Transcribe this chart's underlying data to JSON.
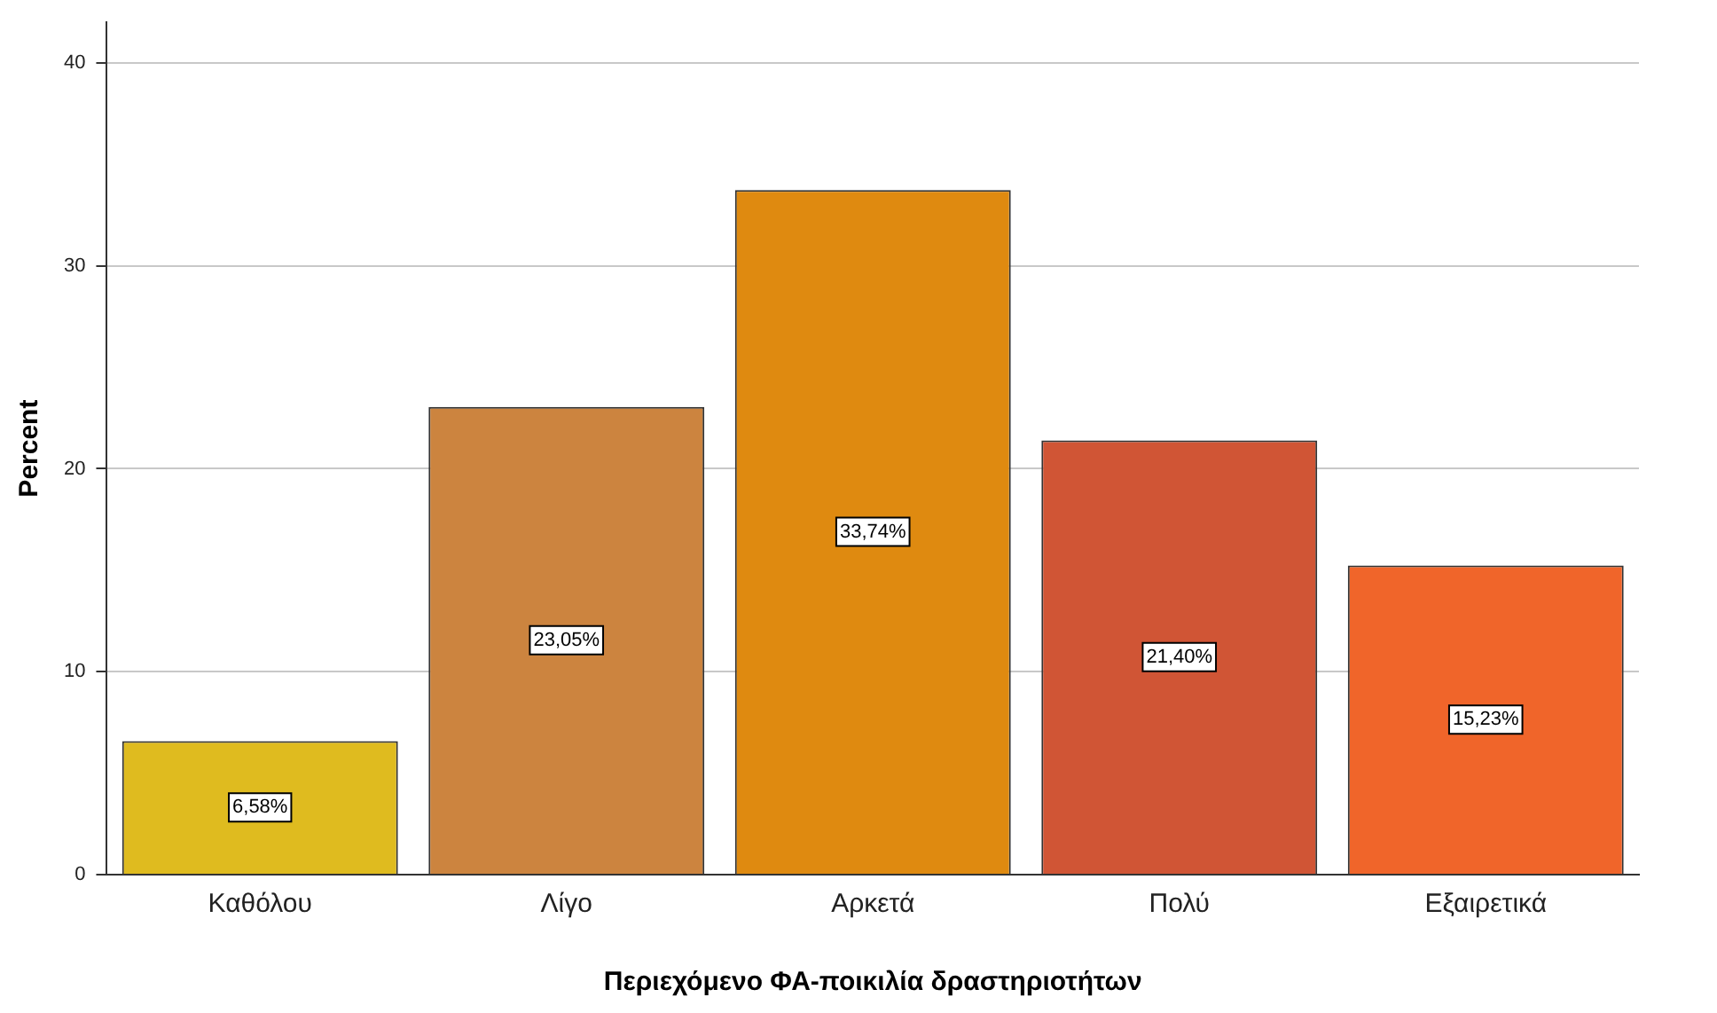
{
  "chart_data": {
    "type": "bar",
    "xlabel": "Περιεχόμενο ΦΑ-ποικιλία δραστηριοτήτων",
    "ylabel": "Percent",
    "categories": [
      "Καθόλου",
      "Λίγο",
      "Αρκετά",
      "Πολύ",
      "Εξαιρετικά"
    ],
    "values": [
      6.58,
      23.05,
      33.74,
      21.4,
      15.23
    ],
    "colors": [
      "#dfbb1f",
      "#cc843f",
      "#df8a10",
      "#d05535",
      "#f0652a"
    ],
    "value_labels": [
      "6,58%",
      "23,05%",
      "33,74%",
      "21,40%",
      "15,23%"
    ],
    "ylim": [
      0,
      42
    ],
    "yticks": [
      0,
      10,
      20,
      30,
      40
    ],
    "grid": "y",
    "legend": false
  }
}
